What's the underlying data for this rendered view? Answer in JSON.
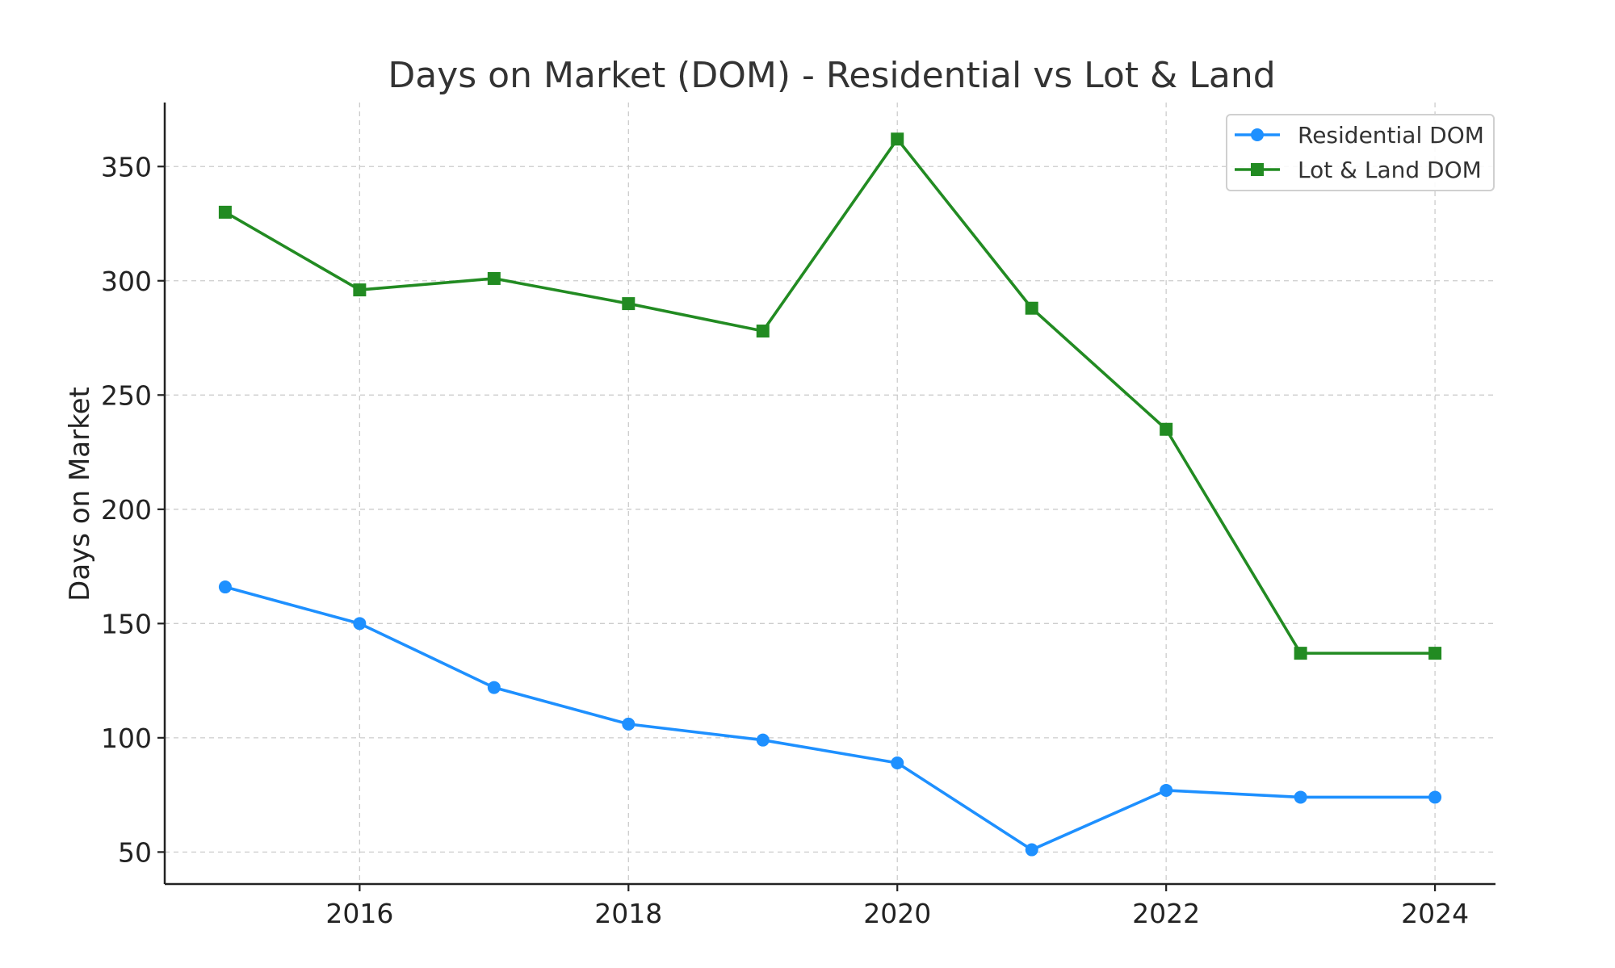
{
  "chart_data": {
    "type": "line",
    "title": "Days on Market (DOM) - Residential vs Lot & Land",
    "xlabel": "",
    "ylabel": "Days on Market",
    "x": [
      2015,
      2016,
      2017,
      2018,
      2019,
      2020,
      2021,
      2022,
      2023,
      2024
    ],
    "xticks": [
      2016,
      2018,
      2020,
      2022,
      2024
    ],
    "yticks": [
      50,
      100,
      150,
      200,
      250,
      300,
      350
    ],
    "xlim": [
      2014.55,
      2024.45
    ],
    "ylim": [
      36,
      378
    ],
    "grid": true,
    "legend_position": "top-right",
    "series": [
      {
        "name": "Residential DOM",
        "marker": "circle",
        "color": "#1e90ff",
        "values": [
          166,
          150,
          122,
          106,
          99,
          89,
          51,
          77,
          74,
          74
        ]
      },
      {
        "name": "Lot & Land DOM",
        "marker": "square",
        "color": "#228b22",
        "values": [
          330,
          296,
          301,
          290,
          278,
          362,
          288,
          235,
          137,
          137
        ]
      }
    ]
  }
}
